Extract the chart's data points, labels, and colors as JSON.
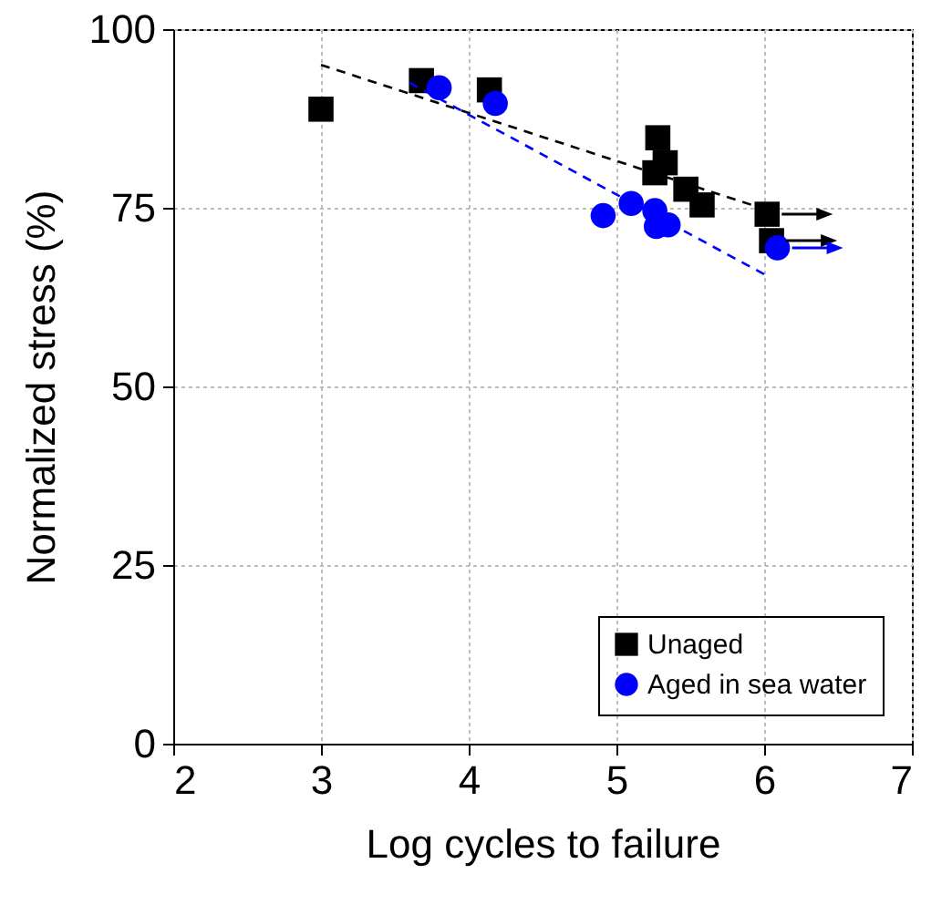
{
  "chart_data": {
    "type": "scatter",
    "xlabel": "Log cycles to failure",
    "ylabel": "Normalized stress (%)",
    "xlim": [
      2,
      7
    ],
    "xticks": [
      2,
      3,
      4,
      5,
      6,
      7
    ],
    "ylim": [
      0,
      100
    ],
    "yticks": [
      0,
      25,
      50,
      75,
      100
    ],
    "grid": true,
    "legend": "bottom right",
    "series": [
      {
        "name": "Unaged",
        "color": "#000000",
        "marker": "square",
        "x": [
          3.0,
          3.68,
          4.14,
          5.28,
          5.33,
          5.26,
          5.47,
          5.58,
          6.02,
          6.05
        ],
        "values": [
          88.8,
          92.8,
          91.5,
          84.8,
          81.3,
          79.9,
          77.6,
          75.4,
          74.1,
          70.4
        ]
      },
      {
        "name": "Aged in sea water",
        "color": "#0000ff",
        "marker": "circle",
        "x": [
          3.8,
          4.18,
          4.91,
          5.1,
          5.26,
          5.27,
          5.35,
          6.09
        ],
        "values": [
          91.8,
          89.6,
          73.9,
          75.6,
          74.6,
          72.4,
          72.6,
          69.4
        ]
      },
      {
        "type": "line",
        "color": "#000000",
        "line_style": "dashed",
        "x": [
          3.0,
          6.05
        ],
        "values": [
          95.0,
          74.5
        ]
      },
      {
        "type": "line",
        "color": "#0000ff",
        "line_style": "dashed",
        "x": [
          3.6,
          6.0
        ],
        "values": [
          92.5,
          65.7
        ]
      }
    ]
  }
}
